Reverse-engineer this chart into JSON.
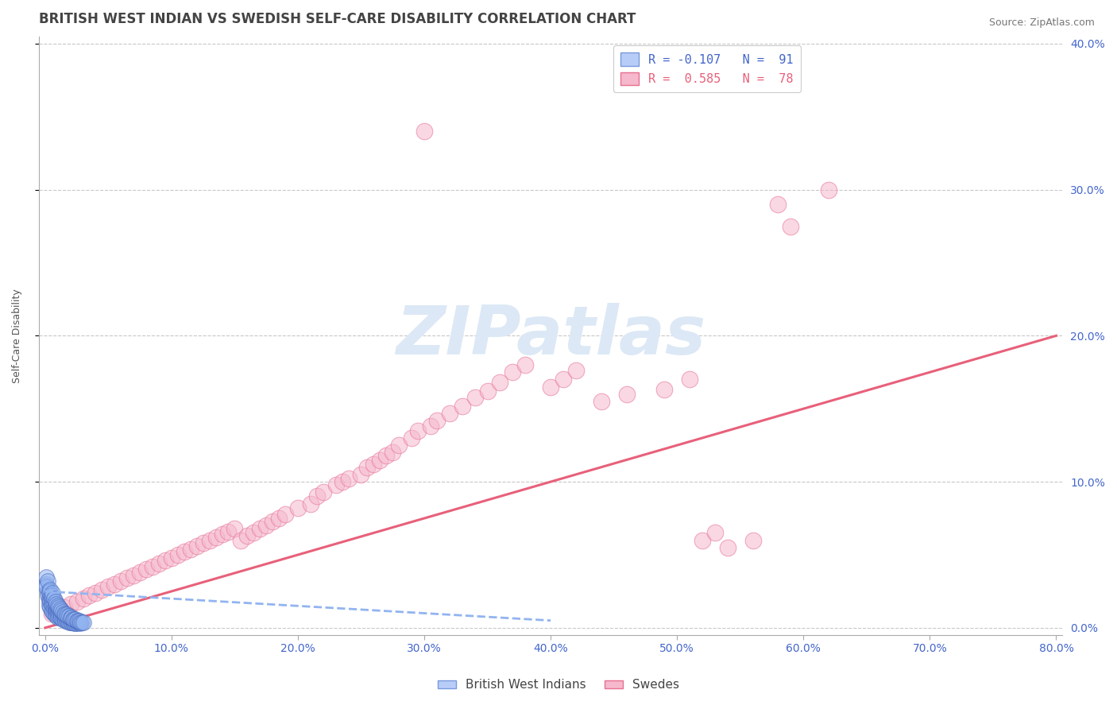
{
  "title": "BRITISH WEST INDIAN VS SWEDISH SELF-CARE DISABILITY CORRELATION CHART",
  "source": "Source: ZipAtlas.com",
  "xlabel": "",
  "ylabel": "Self-Care Disability",
  "xlim": [
    -0.005,
    0.805
  ],
  "ylim": [
    -0.005,
    0.405
  ],
  "xticks": [
    0.0,
    0.1,
    0.2,
    0.3,
    0.4,
    0.5,
    0.6,
    0.7,
    0.8
  ],
  "xticklabels": [
    "0.0%",
    "10.0%",
    "20.0%",
    "30.0%",
    "40.0%",
    "50.0%",
    "60.0%",
    "70.0%",
    "80.0%"
  ],
  "yticks": [
    0.0,
    0.1,
    0.2,
    0.3,
    0.4
  ],
  "yticklabels": [
    "0.0%",
    "10.0%",
    "20.0%",
    "30.0%",
    "40.0%"
  ],
  "grid_color": "#c8c8c8",
  "background_color": "#ffffff",
  "watermark": "ZIPatlas",
  "watermark_color": "#dce8f5",
  "bwi_color": "#92b4f0",
  "bwi_edge_color": "#4466bb",
  "bwi_trend_color": "#92b4f0",
  "swede_color": "#f5b8cc",
  "swede_edge_color": "#e87090",
  "swede_trend_color": "#e8607a",
  "title_fontsize": 12,
  "axis_label_fontsize": 9,
  "tick_fontsize": 10,
  "tick_color": "#4466cc",
  "title_color": "#444444",
  "bwi_R": -0.107,
  "bwi_N": 91,
  "swede_R": 0.585,
  "swede_N": 78,
  "bwi_x": [
    0.001,
    0.002,
    0.002,
    0.003,
    0.003,
    0.003,
    0.004,
    0.004,
    0.004,
    0.005,
    0.005,
    0.005,
    0.006,
    0.006,
    0.006,
    0.007,
    0.007,
    0.007,
    0.008,
    0.008,
    0.008,
    0.009,
    0.009,
    0.009,
    0.01,
    0.01,
    0.01,
    0.011,
    0.011,
    0.012,
    0.012,
    0.013,
    0.013,
    0.014,
    0.014,
    0.015,
    0.015,
    0.016,
    0.016,
    0.017,
    0.017,
    0.018,
    0.018,
    0.019,
    0.019,
    0.02,
    0.02,
    0.021,
    0.021,
    0.022,
    0.022,
    0.023,
    0.023,
    0.024,
    0.024,
    0.025,
    0.025,
    0.026,
    0.027,
    0.028,
    0.001,
    0.001,
    0.002,
    0.003,
    0.004,
    0.005,
    0.006,
    0.007,
    0.008,
    0.009,
    0.01,
    0.011,
    0.012,
    0.013,
    0.014,
    0.015,
    0.016,
    0.017,
    0.018,
    0.019,
    0.02,
    0.021,
    0.022,
    0.023,
    0.024,
    0.025,
    0.026,
    0.027,
    0.028,
    0.029,
    0.03
  ],
  "bwi_y": [
    0.03,
    0.025,
    0.022,
    0.02,
    0.018,
    0.015,
    0.022,
    0.018,
    0.014,
    0.02,
    0.016,
    0.012,
    0.018,
    0.015,
    0.011,
    0.016,
    0.013,
    0.01,
    0.014,
    0.012,
    0.009,
    0.013,
    0.011,
    0.008,
    0.012,
    0.01,
    0.007,
    0.011,
    0.008,
    0.01,
    0.007,
    0.009,
    0.007,
    0.008,
    0.006,
    0.008,
    0.006,
    0.007,
    0.005,
    0.007,
    0.005,
    0.007,
    0.005,
    0.006,
    0.004,
    0.006,
    0.004,
    0.006,
    0.004,
    0.005,
    0.004,
    0.005,
    0.003,
    0.005,
    0.003,
    0.005,
    0.003,
    0.004,
    0.004,
    0.003,
    0.035,
    0.028,
    0.032,
    0.025,
    0.026,
    0.022,
    0.024,
    0.02,
    0.018,
    0.016,
    0.015,
    0.014,
    0.013,
    0.012,
    0.011,
    0.01,
    0.009,
    0.009,
    0.008,
    0.008,
    0.007,
    0.007,
    0.006,
    0.006,
    0.006,
    0.005,
    0.005,
    0.005,
    0.004,
    0.004,
    0.004
  ],
  "swede_x": [
    0.005,
    0.01,
    0.015,
    0.02,
    0.025,
    0.03,
    0.035,
    0.04,
    0.045,
    0.05,
    0.055,
    0.06,
    0.065,
    0.07,
    0.075,
    0.08,
    0.085,
    0.09,
    0.095,
    0.1,
    0.105,
    0.11,
    0.115,
    0.12,
    0.125,
    0.13,
    0.135,
    0.14,
    0.145,
    0.15,
    0.155,
    0.16,
    0.165,
    0.17,
    0.175,
    0.18,
    0.185,
    0.19,
    0.2,
    0.21,
    0.215,
    0.22,
    0.23,
    0.235,
    0.24,
    0.25,
    0.255,
    0.26,
    0.265,
    0.27,
    0.275,
    0.28,
    0.29,
    0.295,
    0.3,
    0.305,
    0.31,
    0.32,
    0.33,
    0.34,
    0.35,
    0.36,
    0.37,
    0.38,
    0.4,
    0.41,
    0.42,
    0.44,
    0.46,
    0.49,
    0.51,
    0.52,
    0.53,
    0.54,
    0.56,
    0.58,
    0.59,
    0.62
  ],
  "swede_y": [
    0.01,
    0.012,
    0.014,
    0.016,
    0.018,
    0.02,
    0.022,
    0.024,
    0.026,
    0.028,
    0.03,
    0.032,
    0.034,
    0.036,
    0.038,
    0.04,
    0.042,
    0.044,
    0.046,
    0.048,
    0.05,
    0.052,
    0.054,
    0.056,
    0.058,
    0.06,
    0.062,
    0.064,
    0.066,
    0.068,
    0.06,
    0.063,
    0.065,
    0.068,
    0.07,
    0.073,
    0.075,
    0.078,
    0.082,
    0.085,
    0.09,
    0.093,
    0.098,
    0.1,
    0.102,
    0.105,
    0.11,
    0.112,
    0.115,
    0.118,
    0.12,
    0.125,
    0.13,
    0.135,
    0.34,
    0.138,
    0.142,
    0.147,
    0.152,
    0.158,
    0.162,
    0.168,
    0.175,
    0.18,
    0.165,
    0.17,
    0.176,
    0.155,
    0.16,
    0.163,
    0.17,
    0.06,
    0.065,
    0.055,
    0.06,
    0.29,
    0.275,
    0.3
  ],
  "swede_trend_x0": 0.0,
  "swede_trend_y0": 0.0,
  "swede_trend_x1": 0.8,
  "swede_trend_y1": 0.2,
  "bwi_trend_x0": 0.0,
  "bwi_trend_y0": 0.025,
  "bwi_trend_x1": 0.4,
  "bwi_trend_y1": 0.005
}
